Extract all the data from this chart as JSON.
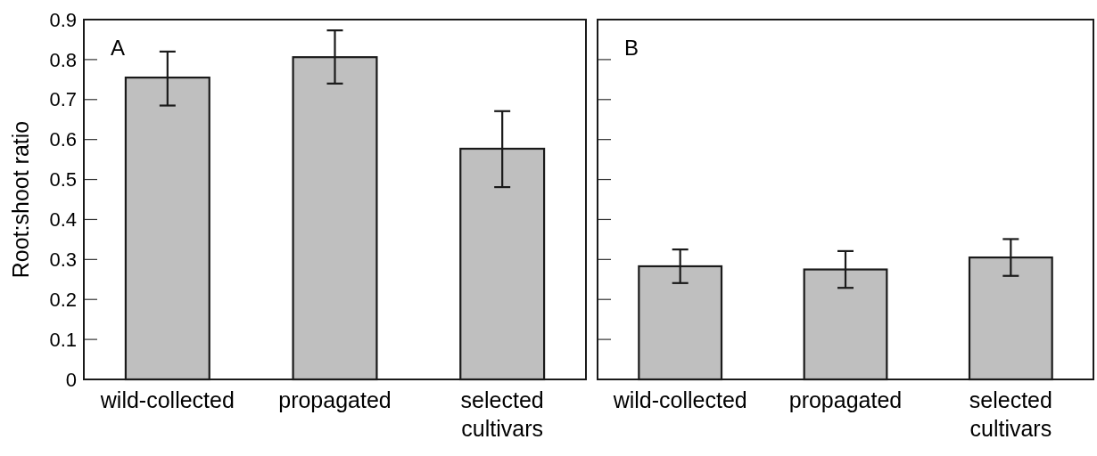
{
  "chart_data": [
    {
      "type": "bar",
      "categories": [
        "wild-collected",
        "propagated",
        "selected cultivars"
      ],
      "values": [
        0.755,
        0.806,
        0.577
      ],
      "errors": [
        [
          0.685,
          0.82
        ],
        [
          0.74,
          0.873
        ],
        [
          0.481,
          0.671
        ]
      ],
      "color": "#bfbfbf",
      "ylabel": "Root:shoot ratio",
      "ylim": [
        0,
        0.9
      ],
      "yticks": [
        0,
        0.1,
        0.2,
        0.3,
        0.4,
        0.5,
        0.6,
        0.7,
        0.8,
        0.9
      ],
      "annotations": [
        "A"
      ]
    },
    {
      "type": "bar",
      "categories": [
        "wild-collected",
        "propagated",
        "selected cultivars"
      ],
      "values": [
        0.283,
        0.275,
        0.305
      ],
      "errors": [
        [
          0.241,
          0.325
        ],
        [
          0.229,
          0.321
        ],
        [
          0.259,
          0.351
        ]
      ],
      "color": "#bfbfbf",
      "ylim": [
        0,
        0.9
      ],
      "yticks": [
        0,
        0.1,
        0.2,
        0.3,
        0.4,
        0.5,
        0.6,
        0.7,
        0.8,
        0.9
      ],
      "tick_labels": "x",
      "annotations": [
        "B"
      ]
    }
  ]
}
